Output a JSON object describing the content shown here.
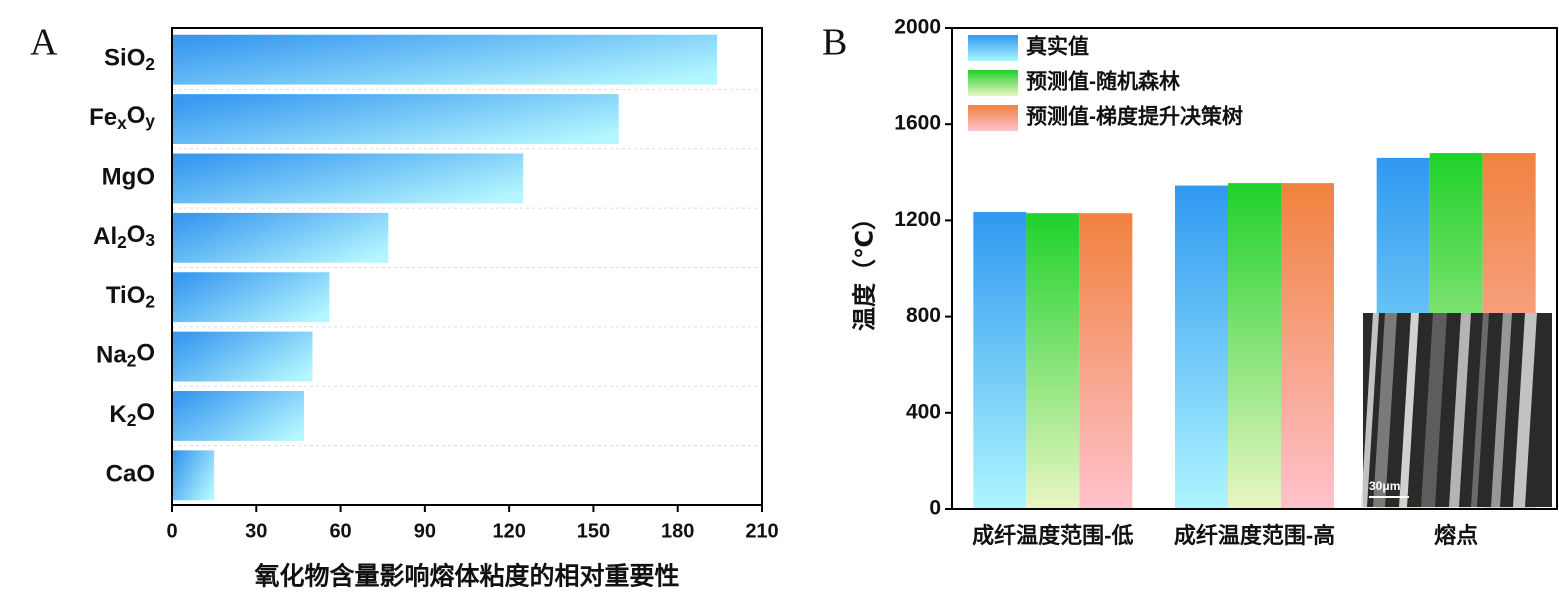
{
  "chart_data": [
    {
      "type": "hbar",
      "panel_label": "A",
      "categories": [
        "SiO2",
        "FexOy",
        "MgO",
        "Al2O3",
        "TiO2",
        "Na2O",
        "K2O",
        "CaO"
      ],
      "values": [
        194,
        159,
        125,
        77,
        56,
        50,
        47,
        15
      ],
      "color": "#3a9af0",
      "color_end": "#b4f6ff",
      "xlim": [
        0,
        210
      ],
      "xticks": [
        0,
        30,
        60,
        90,
        120,
        150,
        180,
        210
      ],
      "xlabel": "氧化物含量影响熔体粘度的相对重要性",
      "grid": true
    },
    {
      "type": "grouped_bar",
      "panel_label": "B",
      "categories": [
        "成纤温度范围-低",
        "成纤温度范围-高",
        "熔点"
      ],
      "series": [
        {
          "name": "真实值",
          "color": "#2f98f0",
          "color_end": "#aef6ff",
          "values": [
            1235,
            1345,
            1460
          ]
        },
        {
          "name": "预测值-随机森林",
          "color": "#1fd12a",
          "color_end": "#eaf6c4",
          "values": [
            1230,
            1355,
            1480
          ]
        },
        {
          "name": "预测值-梯度提升决策树",
          "color": "#f0823e",
          "color_end": "#ffc2cc",
          "values": [
            1230,
            1355,
            1480
          ]
        }
      ],
      "ylim": [
        0,
        2000
      ],
      "yticks": [
        0,
        400,
        800,
        1200,
        1600,
        2000
      ],
      "ylabel": "温度（℃）",
      "legend": "upper left",
      "inset_label": "30μm"
    }
  ]
}
